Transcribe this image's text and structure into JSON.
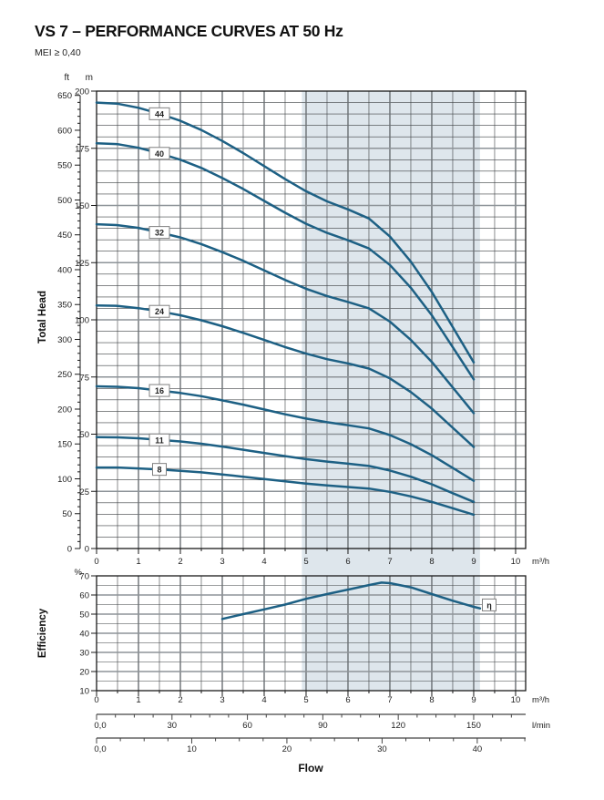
{
  "title": "VS 7 – PERFORMANCE CURVES AT 50 Hz",
  "subtitle": "MEI ≥ 0,40",
  "labels": {
    "total_head": "Total Head",
    "efficiency": "Efficiency",
    "flow": "Flow",
    "unit_ft": "ft",
    "unit_m": "m",
    "unit_percent": "%",
    "unit_flow": "m³/h",
    "unit_lmin": "l/min"
  },
  "colors": {
    "curve": "#1d6084",
    "shade": "#dee6ec",
    "grid_minor": "#3d4043",
    "grid_major": "#8d9398",
    "grid_vmajor": "#6a6f73",
    "border": "#1a1a1a",
    "axis": "#444444",
    "text": "#222222",
    "label_box_border": "#808080",
    "label_box_fill": "#ffffff"
  },
  "chart_data": [
    {
      "type": "line",
      "name": "head-curves",
      "ylabel": "Total Head",
      "xlabel": "Flow",
      "x_unit": "m³/h",
      "x_range": [
        0,
        10.24
      ],
      "x_ticks": [
        0,
        1,
        2,
        3,
        4,
        5,
        6,
        7,
        8,
        9,
        10
      ],
      "x_minor_step": 0.5,
      "y_unit": "m",
      "y_range": [
        0,
        200
      ],
      "y_ticks_m": [
        0,
        25,
        50,
        75,
        100,
        125,
        150,
        175,
        200
      ],
      "y_minor_step": 5,
      "y_unit_secondary": "ft",
      "y_ticks_ft": [
        0,
        50,
        100,
        150,
        200,
        250,
        300,
        350,
        400,
        450,
        500,
        550,
        600,
        650
      ],
      "ft_minor_step": 10,
      "ft_per_m": 3.2808,
      "operating_range": [
        4.9,
        9.15
      ],
      "curve_label_flow": 1.5,
      "x": [
        0,
        0.5,
        1,
        1.5,
        2,
        2.5,
        3,
        3.5,
        4,
        4.5,
        5,
        5.5,
        6,
        6.5,
        7,
        7.5,
        8,
        8.5,
        9
      ],
      "series": [
        {
          "name": "44",
          "values": [
            195,
            194.5,
            192.7,
            190.1,
            187,
            183,
            178.2,
            172.9,
            167.2,
            161.5,
            156.2,
            151.8,
            148.3,
            144.3,
            136.4,
            125.4,
            112.2,
            96.8,
            81.4
          ]
        },
        {
          "name": "40",
          "values": [
            177.2,
            176.8,
            175.2,
            172.8,
            170,
            166.4,
            162,
            157.2,
            152,
            146.8,
            142,
            138,
            134.8,
            131.2,
            124,
            114,
            102,
            88,
            74
          ]
        },
        {
          "name": "32",
          "values": [
            141.8,
            141.4,
            140.2,
            138.2,
            136,
            133.1,
            129.6,
            125.8,
            121.6,
            117.4,
            113.6,
            110.4,
            107.8,
            105,
            99.2,
            91.2,
            81.6,
            70.4,
            59.2
          ]
        },
        {
          "name": "24",
          "values": [
            106.3,
            106.1,
            105.1,
            103.7,
            102,
            99.8,
            97.2,
            94.3,
            91.2,
            88.1,
            85.2,
            82.8,
            80.9,
            78.7,
            74.4,
            68.4,
            61.2,
            52.8,
            44.4
          ]
        },
        {
          "name": "16",
          "values": [
            70.9,
            70.7,
            70.1,
            69.1,
            68,
            66.6,
            64.8,
            62.9,
            60.8,
            58.7,
            56.8,
            55.2,
            53.9,
            52.5,
            49.6,
            45.6,
            40.8,
            35.2,
            29.6
          ]
        },
        {
          "name": "11",
          "values": [
            48.7,
            48.6,
            48.2,
            47.5,
            46.8,
            45.8,
            44.6,
            43.2,
            41.8,
            40.4,
            39.1,
            38,
            37.1,
            36.1,
            34.1,
            31.4,
            28.1,
            24.2,
            20.4
          ]
        },
        {
          "name": "8",
          "values": [
            35.4,
            35.4,
            35,
            34.6,
            34,
            33.3,
            32.4,
            31.4,
            30.4,
            29.4,
            28.4,
            27.6,
            26.9,
            26.2,
            24.8,
            22.8,
            20.4,
            17.6,
            14.8
          ]
        }
      ]
    },
    {
      "type": "line",
      "name": "efficiency-curve",
      "ylabel": "Efficiency",
      "y_unit": "%",
      "y_range": [
        10,
        70
      ],
      "y_ticks": [
        10,
        20,
        30,
        40,
        50,
        60,
        70
      ],
      "y_minor_step": 5,
      "x_range": [
        0,
        10.24
      ],
      "x_ticks": [
        0,
        1,
        2,
        3,
        4,
        5,
        6,
        7,
        8,
        9,
        10
      ],
      "x_unit": "m³/h",
      "x_minor_step": 0.5,
      "label": "η",
      "label_position": {
        "x": 9.37,
        "y": 54.8
      },
      "x": [
        3,
        3.5,
        4,
        4.5,
        5,
        5.5,
        6,
        6.5,
        6.8,
        7,
        7.5,
        8,
        8.5,
        9,
        9.15
      ],
      "values": [
        47.5,
        50,
        52.5,
        55,
        58,
        60.5,
        62.8,
        65.2,
        66.5,
        66.2,
        64,
        60.5,
        57,
        53.8,
        53
      ]
    }
  ],
  "flow_scales": [
    {
      "unit": "l/min",
      "per_m3h": 16.667,
      "zero_label": "0,0",
      "labels": [
        30,
        60,
        90,
        120,
        150
      ],
      "label_step": 30,
      "minor_step": 7.5,
      "max": 170
    },
    {
      "unit": "",
      "per_m3h": 4.403,
      "zero_label": "0,0",
      "labels": [
        10,
        20,
        30,
        40
      ],
      "label_step": 10,
      "minor_step": 2.5,
      "max": 45
    }
  ]
}
